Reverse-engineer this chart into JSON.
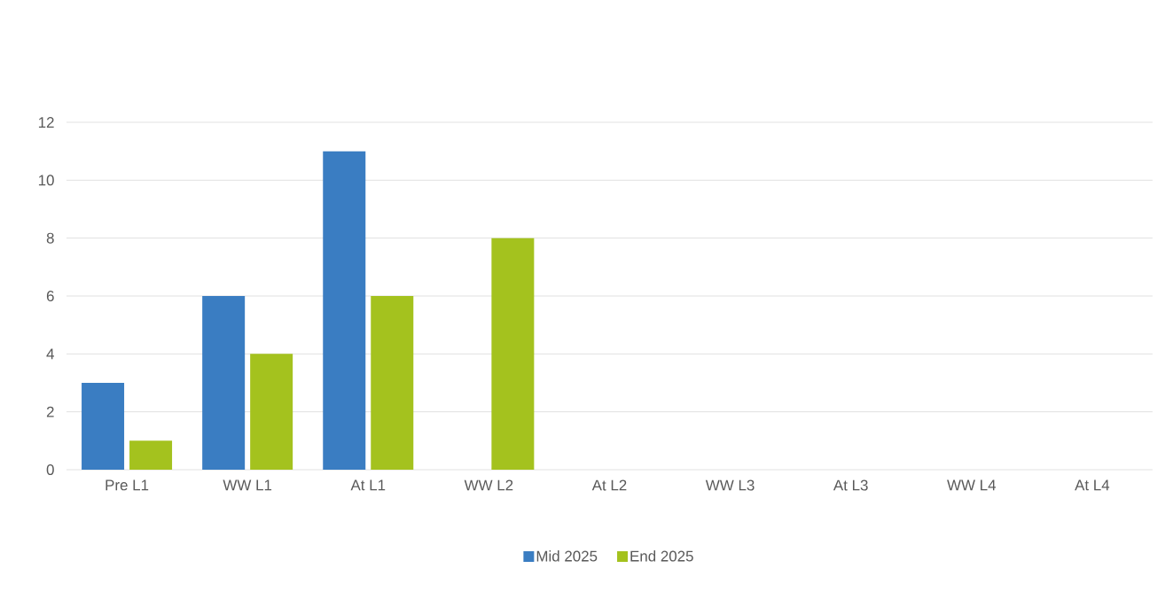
{
  "chart_data": {
    "type": "bar",
    "categories": [
      "Pre L1",
      "WW L1",
      "At L1",
      "WW L2",
      "At L2",
      "WW L3",
      "At L3",
      "WW L4",
      "At L4"
    ],
    "series": [
      {
        "name": "Mid 2025",
        "color": "#3a7dc2",
        "values": [
          3,
          6,
          11,
          null,
          null,
          null,
          null,
          null,
          null
        ]
      },
      {
        "name": "End 2025",
        "color": "#a4c21e",
        "values": [
          1,
          4,
          6,
          8,
          null,
          null,
          null,
          null,
          null
        ]
      }
    ],
    "ylim": [
      0,
      12
    ],
    "yticks": [
      0,
      2,
      4,
      6,
      8,
      10,
      12
    ],
    "grid": "y",
    "legend": "bottom"
  }
}
